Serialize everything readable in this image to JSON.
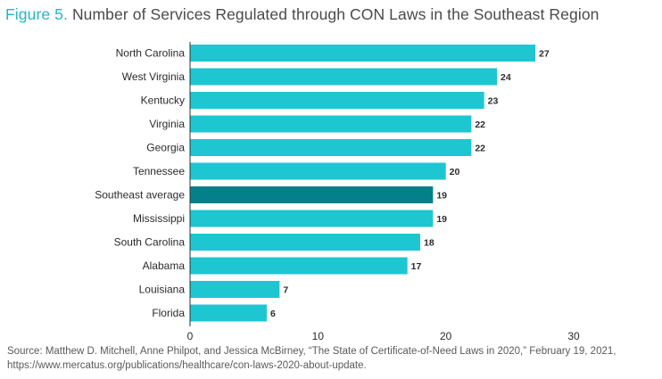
{
  "title": {
    "figure_label": "Figure 5.",
    "text": "Number of Services Regulated through CON Laws in the Southeast Region"
  },
  "source": "Source: Matthew D. Mitchell, Anne Philpot, and Jessica McBirney, “The State of Certificate-of-Need Laws in 2020,” February 19, 2021, https://www.mercatus.org/publications/healthcare/con-laws-2020-about-update.",
  "colors": {
    "bar": "#1dc6d1",
    "highlight": "#038089"
  },
  "chart_data": {
    "type": "bar",
    "orientation": "horizontal",
    "title": "Number of Services Regulated through CON Laws in the Southeast Region",
    "categories": [
      "North Carolina",
      "West Virginia",
      "Kentucky",
      "Virginia",
      "Georgia",
      "Tennessee",
      "Southeast average",
      "Mississippi",
      "South Carolina",
      "Alabama",
      "Louisiana",
      "Florida"
    ],
    "values": [
      27,
      24,
      23,
      22,
      22,
      20,
      19,
      19,
      18,
      17,
      7,
      6
    ],
    "highlight": "Southeast average",
    "xlim": [
      0,
      30
    ],
    "xticks": [
      0,
      10,
      20,
      30
    ],
    "grid": false,
    "legend": "none"
  }
}
